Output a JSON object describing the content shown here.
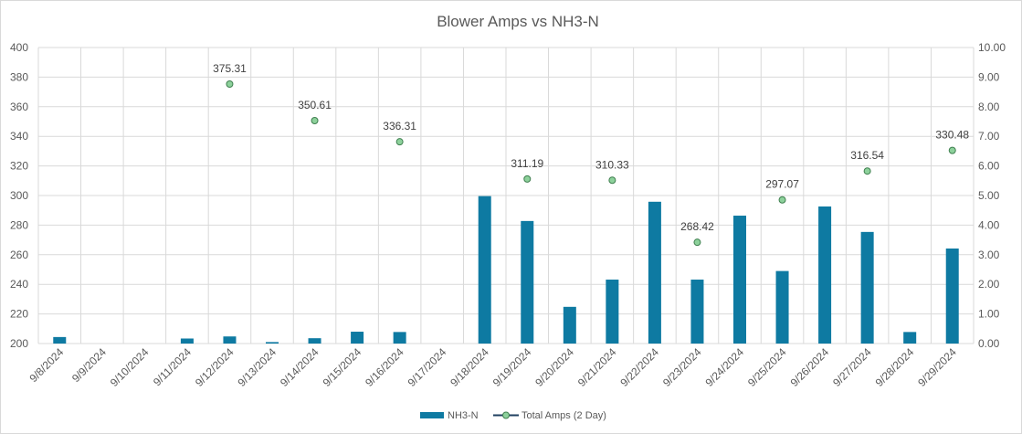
{
  "chart_data": {
    "type": "bar",
    "title": "Blower Amps vs NH3-N",
    "categories": [
      "9/8/2024",
      "9/9/2024",
      "9/10/2024",
      "9/11/2024",
      "9/12/2024",
      "9/13/2024",
      "9/14/2024",
      "9/15/2024",
      "9/16/2024",
      "9/17/2024",
      "9/18/2024",
      "9/19/2024",
      "9/20/2024",
      "9/21/2024",
      "9/22/2024",
      "9/23/2024",
      "9/24/2024",
      "9/25/2024",
      "9/26/2024",
      "9/27/2024",
      "9/28/2024",
      "9/29/2024"
    ],
    "y_left": {
      "min": 200,
      "max": 400,
      "step": 20,
      "ticks": [
        "200",
        "220",
        "240",
        "260",
        "280",
        "300",
        "320",
        "340",
        "360",
        "380",
        "400"
      ]
    },
    "y_right": {
      "min": 0,
      "max": 10,
      "step": 1,
      "ticks": [
        "0.00",
        "1.00",
        "2.00",
        "3.00",
        "4.00",
        "5.00",
        "6.00",
        "7.00",
        "8.00",
        "9.00",
        "10.00"
      ]
    },
    "grid": true,
    "legend_position": "bottom",
    "series": [
      {
        "name": "NH3-N",
        "type": "bar",
        "axis": "right",
        "color": "#0e7aa2",
        "values": [
          0.22,
          null,
          null,
          0.17,
          0.24,
          0.05,
          0.18,
          0.4,
          0.39,
          null,
          4.98,
          4.14,
          1.24,
          2.16,
          4.79,
          2.16,
          4.32,
          2.45,
          4.63,
          3.77,
          0.39,
          3.21
        ]
      },
      {
        "name": "Total Amps (2 Day)",
        "type": "scatter",
        "axis": "left",
        "color": "#8dd19b",
        "values": [
          null,
          null,
          null,
          null,
          375.31,
          null,
          350.61,
          null,
          336.31,
          null,
          null,
          311.19,
          null,
          310.33,
          null,
          268.42,
          null,
          297.07,
          null,
          316.54,
          null,
          330.48
        ],
        "labels": [
          null,
          null,
          null,
          null,
          "375.31",
          null,
          "350.61",
          null,
          "336.31",
          null,
          null,
          "311.19",
          null,
          "310.33",
          null,
          "268.42",
          null,
          "297.07",
          null,
          "316.54",
          null,
          "330.48"
        ]
      }
    ]
  }
}
